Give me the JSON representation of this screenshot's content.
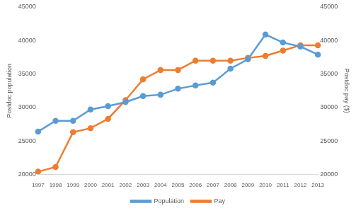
{
  "chart_data": {
    "type": "line",
    "categories": [
      "1997",
      "1998",
      "1999",
      "2000",
      "2001",
      "2002",
      "2003",
      "2004",
      "2005",
      "2006",
      "2007",
      "2008",
      "2009",
      "2010",
      "2011",
      "2012",
      "2013"
    ],
    "series": [
      {
        "name": "Population",
        "color": "#5b9bd5",
        "marker": "circle",
        "axis": "y",
        "values": [
          26400,
          28000,
          28000,
          29700,
          30200,
          30800,
          31700,
          31900,
          32800,
          33300,
          33700,
          35800,
          37200,
          40900,
          39700,
          39100,
          37900
        ]
      },
      {
        "name": "Pay",
        "color": "#ed7d31",
        "marker": "circle",
        "axis": "y2",
        "values": [
          20400,
          21100,
          26300,
          26900,
          28300,
          31100,
          34200,
          35600,
          35600,
          37000,
          37000,
          37000,
          37400,
          37700,
          38500,
          39300,
          39300
        ]
      }
    ],
    "ylabel": "Postdoc population",
    "y2label": "Postdoc pay ($)",
    "ylim": [
      20000,
      45000
    ],
    "yticks": [
      20000,
      25000,
      30000,
      35000,
      40000,
      45000
    ],
    "y2lim": [
      20000,
      45000
    ],
    "y2ticks": [
      20000,
      25000,
      30000,
      35000,
      40000,
      45000
    ],
    "grid": false,
    "legend": "bottom"
  }
}
